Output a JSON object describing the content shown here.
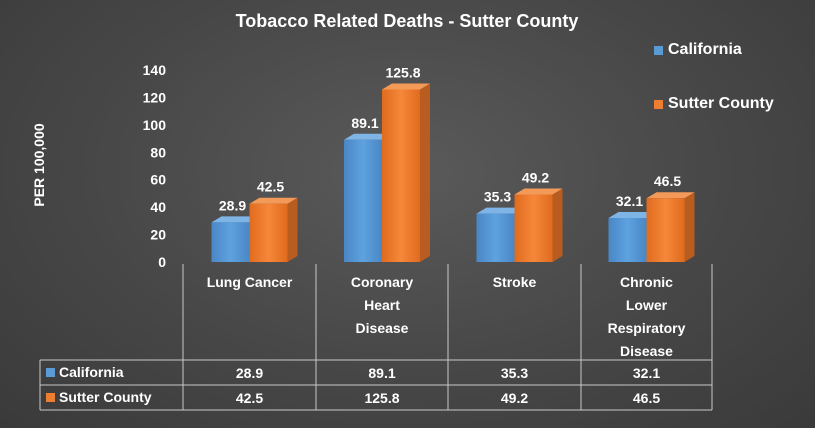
{
  "chart_data": {
    "type": "bar",
    "title": "Tobacco Related Deaths - Sutter County",
    "ylabel": "PER 100,000",
    "xlabel": "",
    "ylim": [
      0,
      140
    ],
    "yticks": [
      0,
      20,
      40,
      60,
      80,
      100,
      120,
      140
    ],
    "categories": [
      [
        "Lung Cancer"
      ],
      [
        "Coronary",
        "Heart",
        "Disease"
      ],
      [
        "Stroke"
      ],
      [
        "Chronic",
        "Lower",
        "Respiratory",
        "Disease"
      ]
    ],
    "series": [
      {
        "name": "California",
        "color": "#5b9bd5",
        "values": [
          28.9,
          89.1,
          35.3,
          32.1
        ]
      },
      {
        "name": "Sutter County",
        "color": "#ed7d31",
        "values": [
          42.5,
          125.8,
          49.2,
          46.5
        ]
      }
    ],
    "legend_position": "top-right",
    "data_table": true
  }
}
